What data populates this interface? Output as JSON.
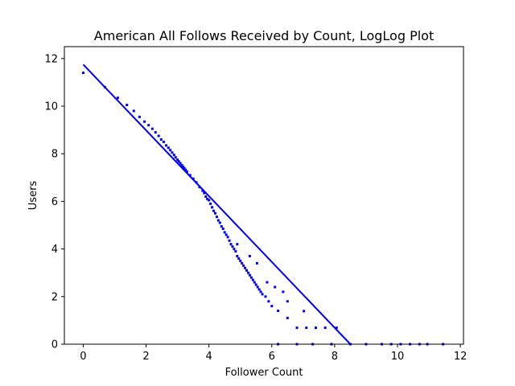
{
  "chart_data": {
    "type": "scatter",
    "title": "American All Follows Received by Count, LogLog Plot",
    "xlabel": "Follower Count",
    "ylabel": "Users",
    "xlim": [
      -0.6,
      12.1
    ],
    "ylim": [
      0,
      12.5
    ],
    "x_ticks": [
      "0",
      "2",
      "4",
      "6",
      "8",
      "10",
      "12"
    ],
    "y_ticks": [
      "0",
      "2",
      "4",
      "6",
      "8",
      "10",
      "12"
    ],
    "color": "#0000ff",
    "grid": false,
    "series": [
      {
        "kind": "points",
        "points": [
          [
            0.0,
            11.4
          ],
          [
            0.69,
            10.8
          ],
          [
            1.1,
            10.35
          ],
          [
            1.39,
            10.05
          ],
          [
            1.61,
            9.8
          ],
          [
            1.79,
            9.55
          ],
          [
            1.95,
            9.35
          ],
          [
            2.08,
            9.2
          ],
          [
            2.2,
            9.05
          ],
          [
            2.3,
            8.9
          ],
          [
            2.4,
            8.75
          ],
          [
            2.48,
            8.6
          ],
          [
            2.56,
            8.5
          ],
          [
            2.64,
            8.35
          ],
          [
            2.71,
            8.25
          ],
          [
            2.77,
            8.15
          ],
          [
            2.83,
            8.05
          ],
          [
            2.89,
            7.95
          ],
          [
            2.94,
            7.85
          ],
          [
            3.0,
            7.75
          ],
          [
            3.04,
            7.68
          ],
          [
            3.09,
            7.6
          ],
          [
            3.14,
            7.52
          ],
          [
            3.18,
            7.45
          ],
          [
            3.22,
            7.38
          ],
          [
            3.26,
            7.32
          ],
          [
            3.3,
            7.25
          ],
          [
            3.4,
            7.1
          ],
          [
            3.5,
            6.95
          ],
          [
            3.6,
            6.8
          ],
          [
            3.7,
            6.6
          ],
          [
            3.8,
            6.45
          ],
          [
            3.85,
            6.35
          ],
          [
            3.9,
            6.2
          ],
          [
            3.95,
            6.1
          ],
          [
            4.0,
            6.05
          ],
          [
            4.05,
            5.9
          ],
          [
            4.1,
            5.75
          ],
          [
            4.15,
            5.6
          ],
          [
            4.2,
            5.5
          ],
          [
            4.25,
            5.35
          ],
          [
            4.3,
            5.2
          ],
          [
            4.35,
            5.1
          ],
          [
            4.4,
            4.95
          ],
          [
            4.45,
            4.85
          ],
          [
            4.5,
            4.7
          ],
          [
            4.55,
            4.6
          ],
          [
            4.6,
            4.5
          ],
          [
            4.65,
            4.35
          ],
          [
            4.7,
            4.2
          ],
          [
            4.75,
            4.1
          ],
          [
            4.8,
            4.0
          ],
          [
            4.85,
            3.9
          ],
          [
            4.9,
            3.7
          ],
          [
            4.95,
            3.6
          ],
          [
            5.0,
            3.5
          ],
          [
            5.05,
            3.4
          ],
          [
            5.1,
            3.3
          ],
          [
            5.15,
            3.2
          ],
          [
            5.2,
            3.1
          ],
          [
            5.25,
            3.0
          ],
          [
            5.3,
            2.9
          ],
          [
            5.35,
            2.8
          ],
          [
            5.4,
            2.7
          ],
          [
            5.45,
            2.6
          ],
          [
            5.5,
            2.5
          ],
          [
            5.55,
            2.4
          ],
          [
            5.6,
            2.3
          ],
          [
            5.65,
            2.2
          ],
          [
            5.7,
            2.1
          ],
          [
            5.8,
            2.0
          ],
          [
            5.9,
            1.8
          ],
          [
            6.0,
            1.6
          ],
          [
            6.2,
            1.4
          ],
          [
            6.5,
            1.1
          ],
          [
            6.8,
            0.69
          ],
          [
            7.1,
            0.69
          ],
          [
            7.4,
            0.69
          ],
          [
            7.7,
            0.69
          ],
          [
            8.06,
            0.69
          ],
          [
            7.02,
            1.39
          ],
          [
            6.36,
            2.2
          ],
          [
            6.5,
            1.8
          ],
          [
            5.3,
            3.7
          ],
          [
            4.9,
            4.2
          ],
          [
            5.53,
            3.4
          ],
          [
            6.1,
            2.4
          ],
          [
            5.85,
            2.6
          ],
          [
            6.2,
            0.0
          ],
          [
            6.8,
            0.0
          ],
          [
            7.3,
            0.0
          ],
          [
            7.9,
            0.0
          ],
          [
            8.5,
            0.0
          ],
          [
            9.0,
            0.0
          ],
          [
            9.5,
            0.0
          ],
          [
            9.8,
            0.0
          ],
          [
            10.1,
            0.0
          ],
          [
            10.4,
            0.0
          ],
          [
            10.7,
            0.0
          ],
          [
            10.95,
            0.0
          ],
          [
            11.45,
            0.0
          ]
        ]
      },
      {
        "kind": "fit-line",
        "points": [
          [
            0.0,
            11.75
          ],
          [
            8.5,
            0.0
          ]
        ]
      }
    ]
  }
}
